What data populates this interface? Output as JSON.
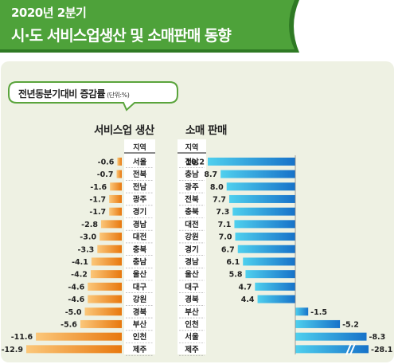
{
  "header": {
    "subtitle": "2020년 2분기",
    "title": "시·도 서비스업생산 및 소매판매 동향"
  },
  "bubble": {
    "label": "전년동분기대비 증감률",
    "unit": "(단위:%)"
  },
  "colors": {
    "header_green": "#4ea23a",
    "header_dark": "#2f7a24",
    "panel_bg": "#eef1e3",
    "bubble_border": "#5aa43c",
    "orange_light": "#fbc77a",
    "orange_dark": "#e8780e",
    "blue_light": "#4fd0ee",
    "blue_dark": "#1772c9",
    "region_band": "#ffffff"
  },
  "chart_data": [
    {
      "type": "bar",
      "orientation": "horizontal",
      "title": "서비스업 생산",
      "column_header": "지역",
      "categories": [
        "서울",
        "전북",
        "전남",
        "광주",
        "경기",
        "경남",
        "대전",
        "충북",
        "충남",
        "울산",
        "대구",
        "강원",
        "경북",
        "부산",
        "인천",
        "제주"
      ],
      "values": [
        -0.6,
        -0.7,
        -1.6,
        -1.7,
        -1.7,
        -2.8,
        -3.0,
        -3.3,
        -4.1,
        -4.2,
        -4.6,
        -4.6,
        -5.0,
        -5.6,
        -11.6,
        -12.9
      ],
      "labels": [
        "-0.6",
        "-0.7",
        "-1.6",
        "-1.7",
        "-1.7",
        "-2.8",
        "-3.0",
        "-3.3",
        "-4.1",
        "-4.2",
        "-4.6",
        "-4.6",
        "-5.0",
        "-5.6",
        "-11.6",
        "-12.9"
      ],
      "xlim": [
        -12.9,
        0
      ]
    },
    {
      "type": "bar",
      "orientation": "horizontal",
      "title": "소매 판매",
      "column_header": "지역",
      "categories": [
        "전남",
        "충남",
        "광주",
        "전북",
        "충북",
        "대전",
        "강원",
        "경기",
        "경남",
        "울산",
        "대구",
        "경북",
        "부산",
        "인천",
        "서울",
        "제주"
      ],
      "values": [
        10.2,
        8.7,
        8.0,
        7.7,
        7.3,
        7.1,
        7.0,
        6.7,
        6.1,
        5.8,
        4.7,
        4.4,
        -1.5,
        -5.2,
        -8.3,
        -28.1
      ],
      "labels": [
        "10.2",
        "8.7",
        "8.0",
        "7.7",
        "7.3",
        "7.1",
        "7.0",
        "6.7",
        "6.1",
        "5.8",
        "4.7",
        "4.4",
        "-1.5",
        "-5.2",
        "-8.3",
        "-28.1"
      ],
      "broken_axis_series_value": -28.1
    }
  ]
}
